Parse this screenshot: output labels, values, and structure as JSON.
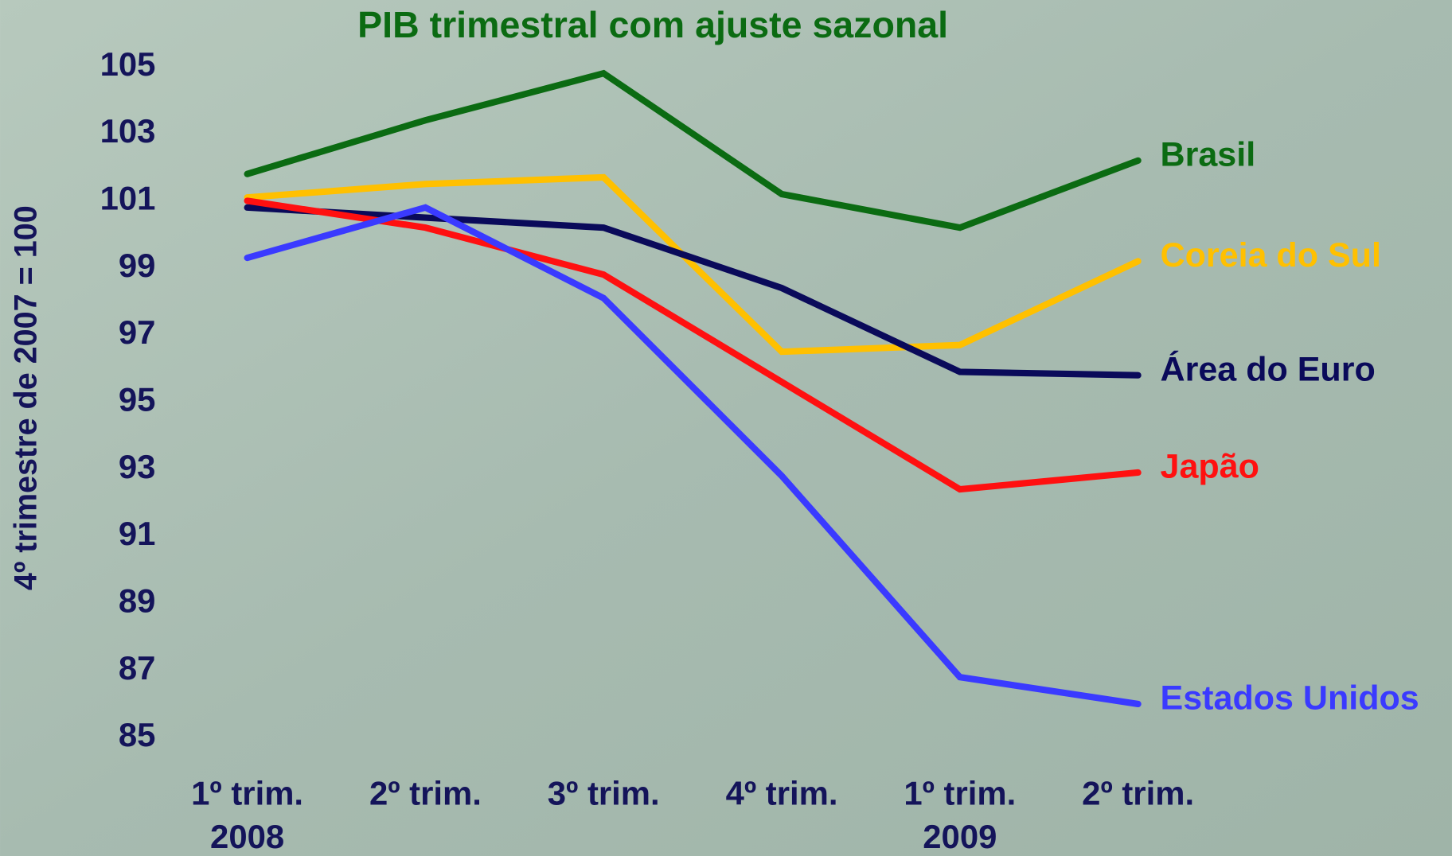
{
  "chart_data": {
    "type": "line",
    "title": "PIB trimestral com ajuste sazonal",
    "y_label": "4º trimestre de 2007 = 100",
    "categories": [
      "1º trim.",
      "2º trim.",
      "3º trim.",
      "4º trim.",
      "1º trim.",
      "2º trim."
    ],
    "years": [
      "2008",
      null,
      null,
      null,
      "2009",
      null
    ],
    "ylim": [
      85,
      105
    ],
    "yticks": [
      85,
      87,
      89,
      91,
      93,
      95,
      97,
      99,
      101,
      103,
      105
    ],
    "grid": false,
    "series": [
      {
        "name": "Brasil",
        "color": "#0b6b12",
        "values": [
          101.8,
          103.4,
          104.8,
          101.2,
          100.2,
          102.2
        ]
      },
      {
        "name": "Coreia do Sul",
        "color": "#ffc000",
        "values": [
          101.1,
          101.5,
          101.7,
          96.5,
          96.7,
          99.2
        ]
      },
      {
        "name": "Área do Euro",
        "color": "#0a0a5a",
        "values": [
          100.8,
          100.5,
          100.2,
          98.4,
          95.9,
          95.8
        ]
      },
      {
        "name": "Japão",
        "color": "#ff1010",
        "values": [
          101.0,
          100.2,
          98.8,
          95.6,
          92.4,
          92.9
        ]
      },
      {
        "name": "Estados Unidos",
        "color": "#3a3aff",
        "values": [
          99.3,
          100.8,
          98.1,
          92.8,
          86.8,
          86.0
        ]
      }
    ]
  }
}
